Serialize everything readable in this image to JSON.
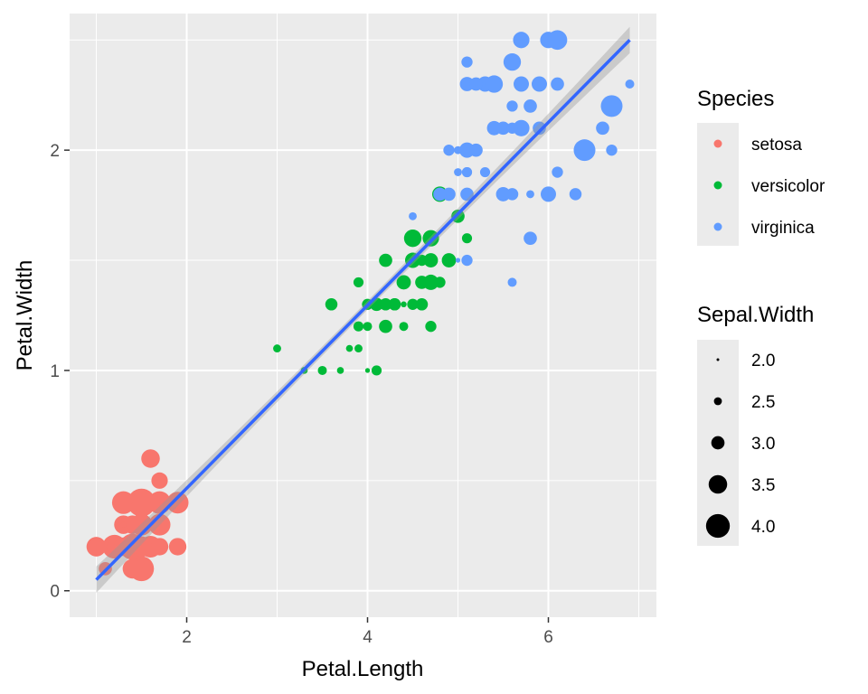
{
  "chart_data": {
    "type": "scatter",
    "title": "",
    "xlabel": "Petal.Length",
    "ylabel": "Petal.Width",
    "xlim": [
      0.705,
      7.195
    ],
    "ylim": [
      -0.12,
      2.62
    ],
    "x_ticks": [
      2,
      4,
      6
    ],
    "y_ticks": [
      0,
      1,
      2
    ],
    "x_tick_labels": [
      "2",
      "4",
      "6"
    ],
    "y_tick_labels": [
      "0",
      "1",
      "2"
    ],
    "grid": true,
    "legend_position": "right",
    "colors": {
      "setosa": "#F8766D",
      "versicolor": "#00BA38",
      "virginica": "#619CFF",
      "smooth_line": "#3366FF",
      "ribbon": "#999999",
      "panel": "#EBEBEB",
      "grid": "#FFFFFF"
    },
    "color_legend": {
      "title": "Species",
      "entries": [
        "setosa",
        "versicolor",
        "virginica"
      ]
    },
    "size_legend": {
      "title": "Sepal.Width",
      "values": [
        2.0,
        2.5,
        3.0,
        3.5,
        4.0
      ],
      "labels": [
        "2.0",
        "2.5",
        "3.0",
        "3.5",
        "4.0"
      ],
      "range": [
        2.0,
        4.4
      ]
    },
    "smooth": {
      "method": "lm",
      "x": [
        1.0,
        6.9
      ],
      "y": [
        0.05,
        2.5
      ],
      "se_halfwidth_ends": 0.06,
      "se_halfwidth_mid": 0.02
    },
    "series": [
      {
        "name": "setosa",
        "points": [
          [
            1.4,
            0.2,
            3.5
          ],
          [
            1.4,
            0.2,
            3.0
          ],
          [
            1.3,
            0.2,
            3.2
          ],
          [
            1.5,
            0.2,
            3.1
          ],
          [
            1.4,
            0.2,
            3.6
          ],
          [
            1.7,
            0.4,
            3.9
          ],
          [
            1.4,
            0.3,
            3.4
          ],
          [
            1.5,
            0.2,
            3.4
          ],
          [
            1.4,
            0.2,
            2.9
          ],
          [
            1.5,
            0.1,
            3.1
          ],
          [
            1.5,
            0.2,
            3.7
          ],
          [
            1.6,
            0.2,
            3.4
          ],
          [
            1.4,
            0.1,
            3.0
          ],
          [
            1.1,
            0.1,
            3.0
          ],
          [
            1.2,
            0.2,
            4.0
          ],
          [
            1.5,
            0.4,
            4.4
          ],
          [
            1.3,
            0.4,
            3.9
          ],
          [
            1.4,
            0.3,
            3.5
          ],
          [
            1.7,
            0.3,
            3.8
          ],
          [
            1.5,
            0.3,
            3.8
          ],
          [
            1.7,
            0.2,
            3.4
          ],
          [
            1.5,
            0.4,
            3.7
          ],
          [
            1.0,
            0.2,
            3.6
          ],
          [
            1.7,
            0.5,
            3.3
          ],
          [
            1.9,
            0.2,
            3.4
          ],
          [
            1.6,
            0.2,
            3.0
          ],
          [
            1.6,
            0.4,
            3.4
          ],
          [
            1.5,
            0.2,
            3.5
          ],
          [
            1.4,
            0.2,
            3.4
          ],
          [
            1.6,
            0.2,
            3.2
          ],
          [
            1.6,
            0.2,
            3.1
          ],
          [
            1.5,
            0.4,
            3.4
          ],
          [
            1.5,
            0.1,
            4.1
          ],
          [
            1.4,
            0.2,
            4.2
          ],
          [
            1.5,
            0.2,
            3.1
          ],
          [
            1.2,
            0.2,
            3.2
          ],
          [
            1.3,
            0.2,
            3.5
          ],
          [
            1.4,
            0.1,
            3.6
          ],
          [
            1.3,
            0.2,
            3.0
          ],
          [
            1.5,
            0.2,
            3.4
          ],
          [
            1.3,
            0.3,
            3.5
          ],
          [
            1.3,
            0.3,
            2.3
          ],
          [
            1.3,
            0.2,
            3.2
          ],
          [
            1.6,
            0.6,
            3.5
          ],
          [
            1.9,
            0.4,
            3.8
          ],
          [
            1.4,
            0.3,
            3.0
          ],
          [
            1.6,
            0.2,
            3.8
          ],
          [
            1.4,
            0.2,
            3.2
          ],
          [
            1.5,
            0.2,
            3.7
          ],
          [
            1.4,
            0.2,
            3.3
          ]
        ]
      },
      {
        "name": "versicolor",
        "points": [
          [
            4.7,
            1.4,
            3.2
          ],
          [
            4.5,
            1.5,
            3.2
          ],
          [
            4.9,
            1.5,
            3.1
          ],
          [
            4.0,
            1.3,
            2.3
          ],
          [
            4.6,
            1.5,
            2.8
          ],
          [
            4.5,
            1.3,
            2.8
          ],
          [
            4.7,
            1.6,
            3.3
          ],
          [
            3.3,
            1.0,
            2.4
          ],
          [
            4.6,
            1.3,
            2.9
          ],
          [
            3.9,
            1.4,
            2.7
          ],
          [
            3.5,
            1.0,
            2.0
          ],
          [
            4.2,
            1.5,
            3.0
          ],
          [
            4.0,
            1.0,
            2.2
          ],
          [
            4.7,
            1.4,
            2.9
          ],
          [
            3.6,
            1.3,
            2.9
          ],
          [
            4.4,
            1.4,
            3.1
          ],
          [
            4.5,
            1.5,
            3.0
          ],
          [
            4.1,
            1.0,
            2.7
          ],
          [
            4.5,
            1.5,
            2.2
          ],
          [
            3.9,
            1.1,
            2.5
          ],
          [
            4.8,
            1.8,
            3.2
          ],
          [
            4.0,
            1.3,
            2.8
          ],
          [
            4.9,
            1.5,
            2.5
          ],
          [
            4.7,
            1.2,
            2.8
          ],
          [
            4.3,
            1.3,
            2.9
          ],
          [
            4.4,
            1.4,
            3.0
          ],
          [
            4.8,
            1.4,
            2.8
          ],
          [
            5.0,
            1.7,
            3.0
          ],
          [
            4.5,
            1.5,
            2.9
          ],
          [
            3.5,
            1.0,
            2.6
          ],
          [
            3.8,
            1.1,
            2.4
          ],
          [
            3.7,
            1.0,
            2.4
          ],
          [
            3.9,
            1.2,
            2.7
          ],
          [
            5.1,
            1.6,
            2.7
          ],
          [
            4.5,
            1.5,
            3.0
          ],
          [
            4.5,
            1.6,
            3.4
          ],
          [
            4.7,
            1.5,
            3.1
          ],
          [
            4.4,
            1.3,
            2.3
          ],
          [
            4.1,
            1.3,
            3.0
          ],
          [
            4.0,
            1.3,
            2.5
          ],
          [
            4.4,
            1.2,
            2.6
          ],
          [
            4.6,
            1.4,
            3.0
          ],
          [
            4.0,
            1.2,
            2.6
          ],
          [
            3.3,
            1.0,
            2.3
          ],
          [
            4.2,
            1.3,
            2.7
          ],
          [
            4.2,
            1.2,
            3.0
          ],
          [
            4.2,
            1.3,
            2.9
          ],
          [
            4.3,
            1.3,
            2.9
          ],
          [
            3.0,
            1.1,
            2.5
          ],
          [
            4.1,
            1.3,
            2.8
          ]
        ]
      },
      {
        "name": "virginica",
        "points": [
          [
            6.0,
            2.5,
            3.3
          ],
          [
            5.1,
            1.9,
            2.7
          ],
          [
            5.9,
            2.1,
            3.0
          ],
          [
            5.6,
            1.8,
            2.9
          ],
          [
            5.8,
            2.2,
            3.0
          ],
          [
            6.6,
            2.1,
            3.0
          ],
          [
            4.5,
            1.7,
            2.5
          ],
          [
            6.3,
            1.8,
            2.9
          ],
          [
            5.8,
            1.8,
            2.5
          ],
          [
            6.1,
            2.5,
            3.6
          ],
          [
            5.1,
            2.0,
            3.2
          ],
          [
            5.3,
            1.9,
            2.7
          ],
          [
            5.5,
            2.1,
            3.0
          ],
          [
            5.0,
            2.0,
            2.5
          ],
          [
            5.1,
            2.4,
            2.8
          ],
          [
            5.3,
            2.3,
            3.2
          ],
          [
            5.5,
            1.8,
            3.0
          ],
          [
            6.7,
            2.2,
            3.8
          ],
          [
            6.9,
            2.3,
            2.6
          ],
          [
            5.0,
            1.5,
            2.2
          ],
          [
            5.7,
            2.3,
            3.2
          ],
          [
            4.9,
            2.0,
            2.8
          ],
          [
            6.7,
            2.0,
            2.8
          ],
          [
            4.9,
            1.8,
            2.7
          ],
          [
            5.7,
            2.1,
            3.3
          ],
          [
            6.0,
            1.8,
            3.2
          ],
          [
            4.8,
            1.8,
            2.8
          ],
          [
            4.9,
            1.8,
            3.0
          ],
          [
            5.6,
            2.1,
            2.8
          ],
          [
            5.8,
            1.6,
            3.0
          ],
          [
            6.1,
            1.9,
            2.8
          ],
          [
            6.4,
            2.0,
            3.8
          ],
          [
            5.6,
            2.2,
            2.8
          ],
          [
            5.1,
            1.5,
            2.8
          ],
          [
            5.6,
            1.4,
            2.6
          ],
          [
            6.1,
            2.3,
            3.0
          ],
          [
            5.6,
            2.4,
            3.4
          ],
          [
            5.5,
            1.8,
            3.1
          ],
          [
            4.8,
            1.8,
            3.0
          ],
          [
            5.4,
            2.1,
            3.1
          ],
          [
            5.6,
            2.4,
            3.1
          ],
          [
            5.1,
            2.3,
            3.1
          ],
          [
            5.1,
            1.9,
            2.7
          ],
          [
            5.9,
            2.3,
            3.2
          ],
          [
            5.7,
            2.5,
            3.3
          ],
          [
            5.2,
            2.3,
            3.0
          ],
          [
            5.0,
            1.9,
            2.5
          ],
          [
            5.2,
            2.0,
            3.0
          ],
          [
            5.4,
            2.3,
            3.4
          ],
          [
            5.1,
            1.8,
            3.0
          ]
        ]
      }
    ]
  }
}
